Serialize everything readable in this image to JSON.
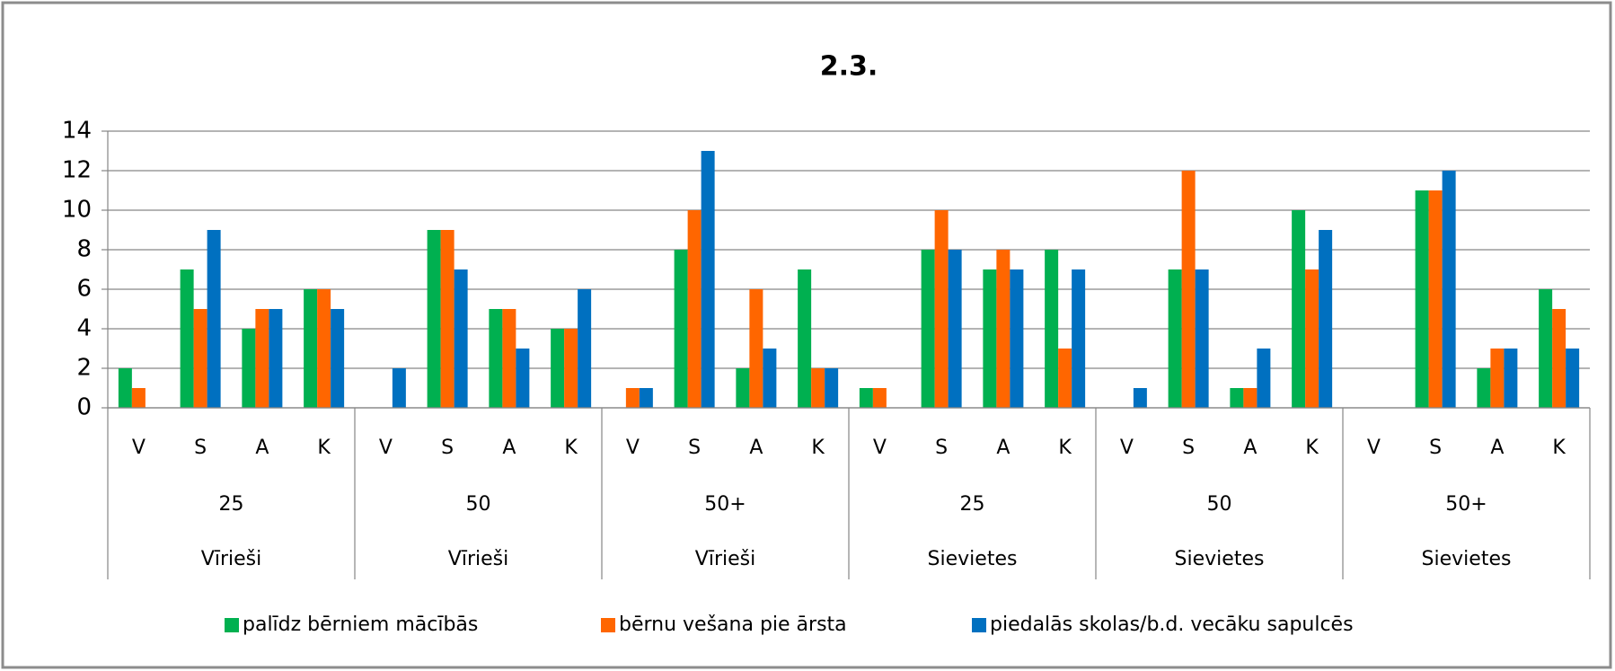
{
  "chart_data": {
    "type": "bar",
    "title": "2.3.",
    "categories": [
      "V",
      "S",
      "A",
      "K",
      "V",
      "S",
      "A",
      "K",
      "V",
      "S",
      "A",
      "K",
      "V",
      "S",
      "A",
      "K",
      "V",
      "S",
      "A",
      "K",
      "V",
      "S",
      "A",
      "K"
    ],
    "groups": [
      "25",
      "50",
      "50+",
      "25",
      "50",
      "50+"
    ],
    "supergroups": [
      "Vīrieši",
      "Vīrieši",
      "Vīrieši",
      "Sievietes",
      "Sievietes",
      "Sievietes"
    ],
    "series": [
      {
        "name": "palīdz bērniem mācībās",
        "color": "#00b050",
        "values": [
          2,
          7,
          4,
          6,
          0,
          9,
          5,
          4,
          0,
          8,
          2,
          7,
          1,
          8,
          7,
          8,
          0,
          7,
          1,
          10,
          0,
          11,
          2,
          6
        ]
      },
      {
        "name": "bērnu vešana pie ārsta",
        "color": "#ff6600",
        "values": [
          1,
          5,
          5,
          6,
          0,
          9,
          5,
          4,
          1,
          10,
          6,
          2,
          1,
          10,
          8,
          3,
          0,
          12,
          1,
          7,
          0,
          11,
          3,
          5
        ]
      },
      {
        "name": "piedalās skolas/b.d. vecāku sapulcēs",
        "color": "#0070c0",
        "values": [
          0,
          9,
          5,
          5,
          2,
          7,
          3,
          6,
          1,
          13,
          3,
          2,
          0,
          8,
          7,
          7,
          1,
          7,
          3,
          9,
          0,
          12,
          3,
          3
        ]
      }
    ],
    "ylim": [
      0,
      14
    ],
    "yticks": [
      0,
      2,
      4,
      6,
      8,
      10,
      12,
      14
    ],
    "grid": true,
    "legend": "bottom"
  }
}
